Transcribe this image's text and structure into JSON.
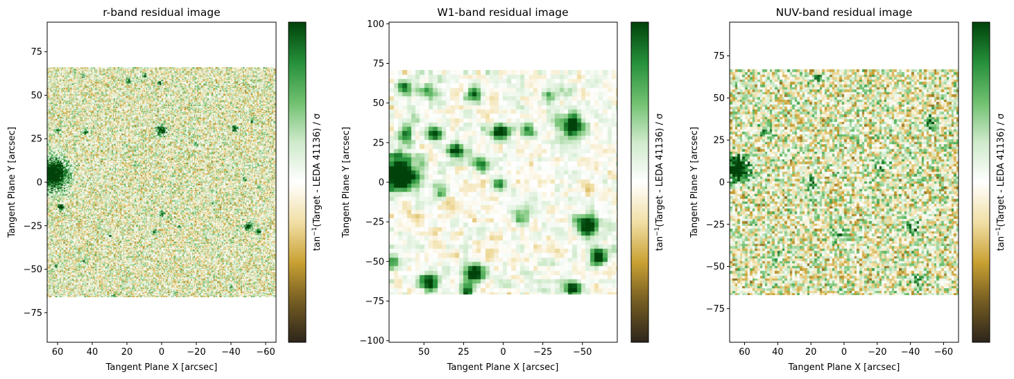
{
  "figure": {
    "colorbar_label_main": "tan",
    "colorbar_label_sup": "−1",
    "colorbar_label_rest": "(Target - LEDA 41136) / σ",
    "colormap": [
      "#2d251b",
      "#735b22",
      "#c9a133",
      "#f1dfa6",
      "#ffffff",
      "#cfeacb",
      "#6fc06f",
      "#258f3a",
      "#00420a"
    ],
    "image_colors": {
      "gold": "#d2a838",
      "green": "#2e8f3c",
      "dark_green": "#0b5a1c"
    }
  },
  "chart_data": [
    {
      "type": "heatmap",
      "title": "r-band residual image",
      "xlabel": "Tangent Plane X [arcsec]",
      "ylabel": "Tangent Plane Y [arcsec]",
      "xlim": [
        66,
        -66
      ],
      "ylim": [
        -92,
        92
      ],
      "x_ticks": [
        60,
        40,
        20,
        0,
        -20,
        -40,
        -60
      ],
      "x_tick_labels": [
        "60",
        "40",
        "20",
        "0",
        "−20",
        "−40",
        "−60"
      ],
      "y_ticks": [
        -75,
        -50,
        -25,
        0,
        25,
        50,
        75
      ],
      "y_tick_labels": [
        "−75",
        "−50",
        "−25",
        "0",
        "25",
        "50",
        "75"
      ],
      "image_extent": {
        "x": [
          66,
          -66
        ],
        "y": [
          -66,
          66
        ]
      },
      "pixel_scale": 0.6,
      "noise_level": 0.5,
      "sources": [
        {
          "x": 63,
          "y": 5,
          "r": 6,
          "strength": 1.0
        },
        {
          "x": 0,
          "y": 30,
          "r": 2,
          "strength": 0.8
        },
        {
          "x": 58,
          "y": -14,
          "r": 1.2,
          "strength": 0.8
        },
        {
          "x": 19,
          "y": 58,
          "r": 1,
          "strength": 0.7
        },
        {
          "x": 10,
          "y": 61,
          "r": 1,
          "strength": 0.7
        },
        {
          "x": 1,
          "y": 57,
          "r": 1,
          "strength": 0.7
        },
        {
          "x": -42,
          "y": 31,
          "r": 1.2,
          "strength": 0.8
        },
        {
          "x": -52,
          "y": 35,
          "r": 0.8,
          "strength": 0.7
        },
        {
          "x": -50,
          "y": -25,
          "r": 1.6,
          "strength": 0.8
        },
        {
          "x": -56,
          "y": -28,
          "r": 1,
          "strength": 0.7
        },
        {
          "x": -48,
          "y": 2,
          "r": 0.8,
          "strength": 0.6
        },
        {
          "x": -56,
          "y": -2,
          "r": 0.8,
          "strength": 0.6
        },
        {
          "x": 0,
          "y": -18,
          "r": 1,
          "strength": 0.7
        },
        {
          "x": 4,
          "y": -28,
          "r": 0.8,
          "strength": 0.6
        },
        {
          "x": -40,
          "y": -60,
          "r": 0.8,
          "strength": 0.6
        },
        {
          "x": 61,
          "y": -48,
          "r": 0.8,
          "strength": 0.6
        },
        {
          "x": 44,
          "y": 29,
          "r": 1,
          "strength": 0.6
        },
        {
          "x": 28,
          "y": -65,
          "r": 0.8,
          "strength": 0.6
        },
        {
          "x": 60,
          "y": 30,
          "r": 0.8,
          "strength": 0.5
        },
        {
          "x": 45,
          "y": -45,
          "r": 0.8,
          "strength": 0.5
        },
        {
          "x": -20,
          "y": 22,
          "r": 0.8,
          "strength": 0.5
        },
        {
          "x": -30,
          "y": -12,
          "r": 0.8,
          "strength": 0.5
        },
        {
          "x": 15,
          "y": 10,
          "r": 0.8,
          "strength": 0.5
        },
        {
          "x": 30,
          "y": -30,
          "r": 0.8,
          "strength": 0.5
        },
        {
          "x": 45,
          "y": 61,
          "r": 0.8,
          "strength": 0.5
        },
        {
          "x": -10,
          "y": -25,
          "r": 0.8,
          "strength": 0.5
        }
      ]
    },
    {
      "type": "heatmap",
      "title": "W1-band residual image",
      "xlabel": "Tangent Plane X [arcsec]",
      "ylabel": "Tangent Plane Y [arcsec]",
      "xlim": [
        72,
        -72
      ],
      "ylim": [
        -101,
        101
      ],
      "x_ticks": [
        50,
        25,
        0,
        -25,
        -50
      ],
      "x_tick_labels": [
        "50",
        "25",
        "0",
        "−25",
        "−50"
      ],
      "y_ticks": [
        -100,
        -75,
        -50,
        -25,
        0,
        25,
        50,
        75,
        100
      ],
      "y_tick_labels": [
        "−100",
        "−75",
        "−50",
        "−25",
        "0",
        "25",
        "50",
        "75",
        "100"
      ],
      "image_extent": {
        "x": [
          72,
          -72
        ],
        "y": [
          -71,
          71
        ]
      },
      "pixel_scale": 2.75,
      "noise_level": 0.22,
      "sources": [
        {
          "x": 65,
          "y": 6,
          "r": 8,
          "strength": 1.0
        },
        {
          "x": 62,
          "y": 60,
          "r": 3.5,
          "strength": 0.6
        },
        {
          "x": 48,
          "y": 57,
          "r": 3.5,
          "strength": 0.5
        },
        {
          "x": 20,
          "y": 55,
          "r": 3.5,
          "strength": 0.6
        },
        {
          "x": 62,
          "y": 31,
          "r": 3.5,
          "strength": 0.6
        },
        {
          "x": 44,
          "y": 31,
          "r": 3.5,
          "strength": 0.6
        },
        {
          "x": 3,
          "y": 32,
          "r": 4,
          "strength": 0.8
        },
        {
          "x": -15,
          "y": 33,
          "r": 3.5,
          "strength": 0.55
        },
        {
          "x": -42,
          "y": 36,
          "r": 5,
          "strength": 0.8
        },
        {
          "x": 30,
          "y": 20,
          "r": 3.5,
          "strength": 0.6
        },
        {
          "x": 15,
          "y": 12,
          "r": 3.5,
          "strength": 0.55
        },
        {
          "x": 4,
          "y": 0,
          "r": 3,
          "strength": 0.5
        },
        {
          "x": -52,
          "y": -26,
          "r": 4.5,
          "strength": 0.9
        },
        {
          "x": -58,
          "y": -45,
          "r": 3.5,
          "strength": 0.8
        },
        {
          "x": 20,
          "y": -56,
          "r": 4,
          "strength": 0.75
        },
        {
          "x": 47,
          "y": -62,
          "r": 4,
          "strength": 0.8
        },
        {
          "x": -42,
          "y": -66,
          "r": 3.5,
          "strength": 0.7
        },
        {
          "x": 24,
          "y": -68,
          "r": 3,
          "strength": 0.6
        },
        {
          "x": -10,
          "y": -20,
          "r": 4,
          "strength": 0.4
        },
        {
          "x": 40,
          "y": -5,
          "r": 3.5,
          "strength": 0.4
        },
        {
          "x": -28,
          "y": 55,
          "r": 3.5,
          "strength": 0.45
        },
        {
          "x": 70,
          "y": -50,
          "r": 3,
          "strength": 0.5
        }
      ]
    },
    {
      "type": "heatmap",
      "title": "NUV-band residual image",
      "xlabel": "Tangent Plane X [arcsec]",
      "ylabel": "Tangent Plane Y [arcsec]",
      "xlim": [
        69,
        -69
      ],
      "ylim": [
        -95,
        95
      ],
      "x_ticks": [
        60,
        40,
        20,
        0,
        -20,
        -40,
        -60
      ],
      "x_tick_labels": [
        "60",
        "40",
        "20",
        "0",
        "−20",
        "−40",
        "−60"
      ],
      "y_ticks": [
        -75,
        -50,
        -25,
        0,
        25,
        50,
        75
      ],
      "y_tick_labels": [
        "−75",
        "−50",
        "−25",
        "0",
        "25",
        "50",
        "75"
      ],
      "image_extent": {
        "x": [
          69,
          -69
        ],
        "y": [
          -67,
          67
        ]
      },
      "pixel_scale": 1.5,
      "noise_level": 0.55,
      "sources": [
        {
          "x": 65,
          "y": 8,
          "r": 5,
          "strength": 1.0
        },
        {
          "x": -50,
          "y": 35,
          "r": 3,
          "strength": 0.55
        },
        {
          "x": 48,
          "y": 30,
          "r": 3,
          "strength": 0.35
        },
        {
          "x": -40,
          "y": -26,
          "r": 3.5,
          "strength": 0.35
        },
        {
          "x": -42,
          "y": -58,
          "r": 3,
          "strength": 0.35
        },
        {
          "x": 15,
          "y": 62,
          "r": 2.5,
          "strength": 0.3
        },
        {
          "x": 5,
          "y": -30,
          "r": 3.5,
          "strength": 0.3
        },
        {
          "x": 40,
          "y": -45,
          "r": 3,
          "strength": 0.3
        },
        {
          "x": -20,
          "y": 10,
          "r": 3,
          "strength": 0.3
        },
        {
          "x": 20,
          "y": 0,
          "r": 3,
          "strength": 0.3
        }
      ]
    }
  ]
}
